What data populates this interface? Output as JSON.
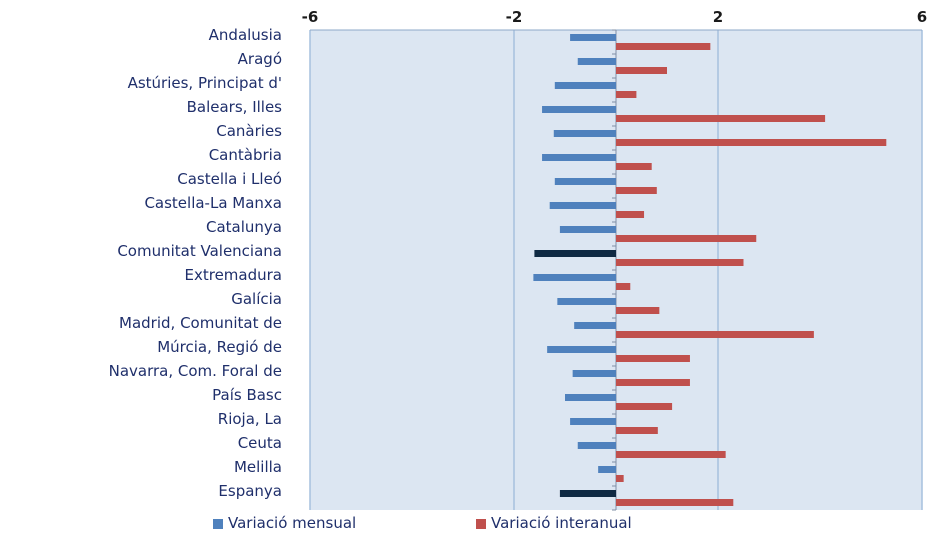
{
  "chart_data": {
    "type": "bar",
    "orientation": "horizontal",
    "categories": [
      "Andalusia",
      "Aragó",
      "Astúries, Principat d'",
      "Balears, Illes",
      "Canàries",
      "Cantàbria",
      "Castella  i Lleó",
      "Castella-La Manxa",
      "Catalunya",
      "Comunitat Valenciana",
      "Extremadura",
      "Galícia",
      "Madrid, Comunitat de",
      "Múrcia, Regió de",
      "Navarra, Com. Foral de",
      "País Basc",
      "Rioja, La",
      "Ceuta",
      "Melilla",
      "Espanya"
    ],
    "series": [
      {
        "name": "Variació mensual",
        "color": "#4f81bd",
        "highlight_color": "#0f2a44",
        "highlight_categories": [
          "Comunitat Valenciana",
          "Espanya"
        ],
        "values": [
          -0.9,
          -0.75,
          -1.2,
          -1.45,
          -1.22,
          -1.45,
          -1.2,
          -1.3,
          -1.1,
          -1.6,
          -1.62,
          -1.15,
          -0.82,
          -1.35,
          -0.85,
          -1.0,
          -0.9,
          -0.75,
          -0.35,
          -1.1
        ]
      },
      {
        "name": "Variació interanual",
        "color": "#c0504d",
        "values": [
          1.85,
          1.0,
          0.4,
          4.1,
          5.3,
          0.7,
          0.8,
          0.55,
          2.75,
          2.5,
          0.28,
          0.85,
          3.88,
          1.45,
          1.45,
          1.1,
          0.82,
          2.15,
          0.15,
          2.3
        ]
      }
    ],
    "xlim": [
      -6,
      6
    ],
    "xticks": [
      -6,
      -2,
      2,
      6
    ],
    "xtick_labels": [
      "-6",
      "-2",
      "2",
      "6"
    ],
    "axis_position": "top",
    "grid": true,
    "plot_background": "#dce6f2",
    "gridline_color": "#a6c0de",
    "legend_position": "bottom",
    "title": "",
    "xlabel": "",
    "ylabel": ""
  }
}
